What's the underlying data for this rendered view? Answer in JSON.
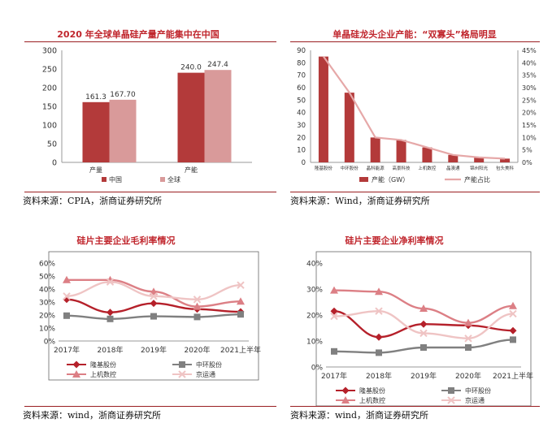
{
  "chart_data": [
    {
      "type": "bar",
      "title": "2020 年全球单晶硅产量产能集中在中国",
      "categories": [
        "产量",
        "产能"
      ],
      "series": [
        {
          "name": "中国",
          "values": [
            161.3,
            240.0
          ],
          "labels": [
            "161.3",
            "240.0"
          ],
          "color": "#b33a3a"
        },
        {
          "name": "全球",
          "values": [
            167.7,
            247.4
          ],
          "labels": [
            "167.70",
            "247.4"
          ],
          "color": "#d99a9a"
        }
      ],
      "yticks": [
        "0",
        "50",
        "100",
        "150",
        "200",
        "250",
        "300"
      ],
      "ylim": [
        0,
        300
      ],
      "legend": "bottom",
      "source": "资料来源：CPIA，浙商证券研究所"
    },
    {
      "type": "bar+line",
      "title": "单晶硅龙头企业产能：“双寡头”格局明显",
      "categories": [
        "隆基股份",
        "中环股份",
        "晶科能源",
        "高景科技",
        "上机数控",
        "晶澳通",
        "锦州阳光",
        "包头美科"
      ],
      "series": [
        {
          "name": "产能（GW）",
          "type": "bar",
          "values": [
            85,
            56,
            20,
            18,
            12,
            6,
            4,
            3
          ],
          "color": "#b33a3a"
        },
        {
          "name": "产能占比",
          "type": "line",
          "values": [
            42.5,
            28,
            10,
            9,
            6,
            3,
            2,
            1.5
          ],
          "color": "#e6a8a8"
        }
      ],
      "yticks": [
        "0",
        "10",
        "20",
        "30",
        "40",
        "50",
        "60",
        "70",
        "80",
        "90"
      ],
      "y2ticks": [
        "0%",
        "5%",
        "10%",
        "15%",
        "20%",
        "25%",
        "30%",
        "35%",
        "40%",
        "45%"
      ],
      "ylim": [
        0,
        90
      ],
      "y2lim": [
        0,
        45
      ],
      "legend": "bottom",
      "source": "资料来源：Wind，浙商证券研究所"
    },
    {
      "type": "line",
      "title": "硅片主要企业毛利率情况",
      "categories": [
        "2017年",
        "2018年",
        "2019年",
        "2020年",
        "2021上半年"
      ],
      "series": [
        {
          "name": "隆基股份",
          "values": [
            32,
            22,
            29,
            24.5,
            22.5
          ],
          "color": "#b5202a",
          "marker": "diamond"
        },
        {
          "name": "中环股份",
          "values": [
            19.5,
            17,
            19,
            18.5,
            20.5
          ],
          "color": "#808080",
          "marker": "square"
        },
        {
          "name": "上机数控",
          "values": [
            47,
            47,
            38,
            26.5,
            30.5
          ],
          "color": "#dc7f85",
          "marker": "triangle"
        },
        {
          "name": "京运通",
          "values": [
            34.5,
            45.5,
            34.5,
            32,
            43
          ],
          "color": "#efc4c4",
          "marker": "x"
        }
      ],
      "yticks": [
        "0%",
        "10%",
        "20%",
        "30%",
        "40%",
        "50%",
        "60%"
      ],
      "ylim": [
        0,
        60
      ],
      "legend": "bottom",
      "source": "资料来源：wind，浙商证券研究所"
    },
    {
      "type": "line",
      "title": "硅片主要企业净利率情况",
      "categories": [
        "2017年",
        "2018年",
        "2019年",
        "2020年",
        "2021上半年"
      ],
      "series": [
        {
          "name": "隆基股份",
          "values": [
            21.5,
            11.5,
            16.5,
            16,
            14
          ],
          "color": "#b5202a",
          "marker": "diamond"
        },
        {
          "name": "中环股份",
          "values": [
            6,
            5.5,
            7.5,
            7.5,
            10.5
          ],
          "color": "#808080",
          "marker": "square"
        },
        {
          "name": "上机数控",
          "values": [
            29.5,
            29,
            22.5,
            17,
            23.5
          ],
          "color": "#dc7f85",
          "marker": "triangle"
        },
        {
          "name": "京运通",
          "values": [
            19.5,
            21.5,
            13,
            11,
            20.5
          ],
          "color": "#efc4c4",
          "marker": "x"
        }
      ],
      "yticks": [
        "0%",
        "10%",
        "20%",
        "30%",
        "40%"
      ],
      "ylim": [
        0,
        40
      ],
      "legend": "bottom",
      "source": "资料来源：wind，浙商证券研究所"
    }
  ]
}
